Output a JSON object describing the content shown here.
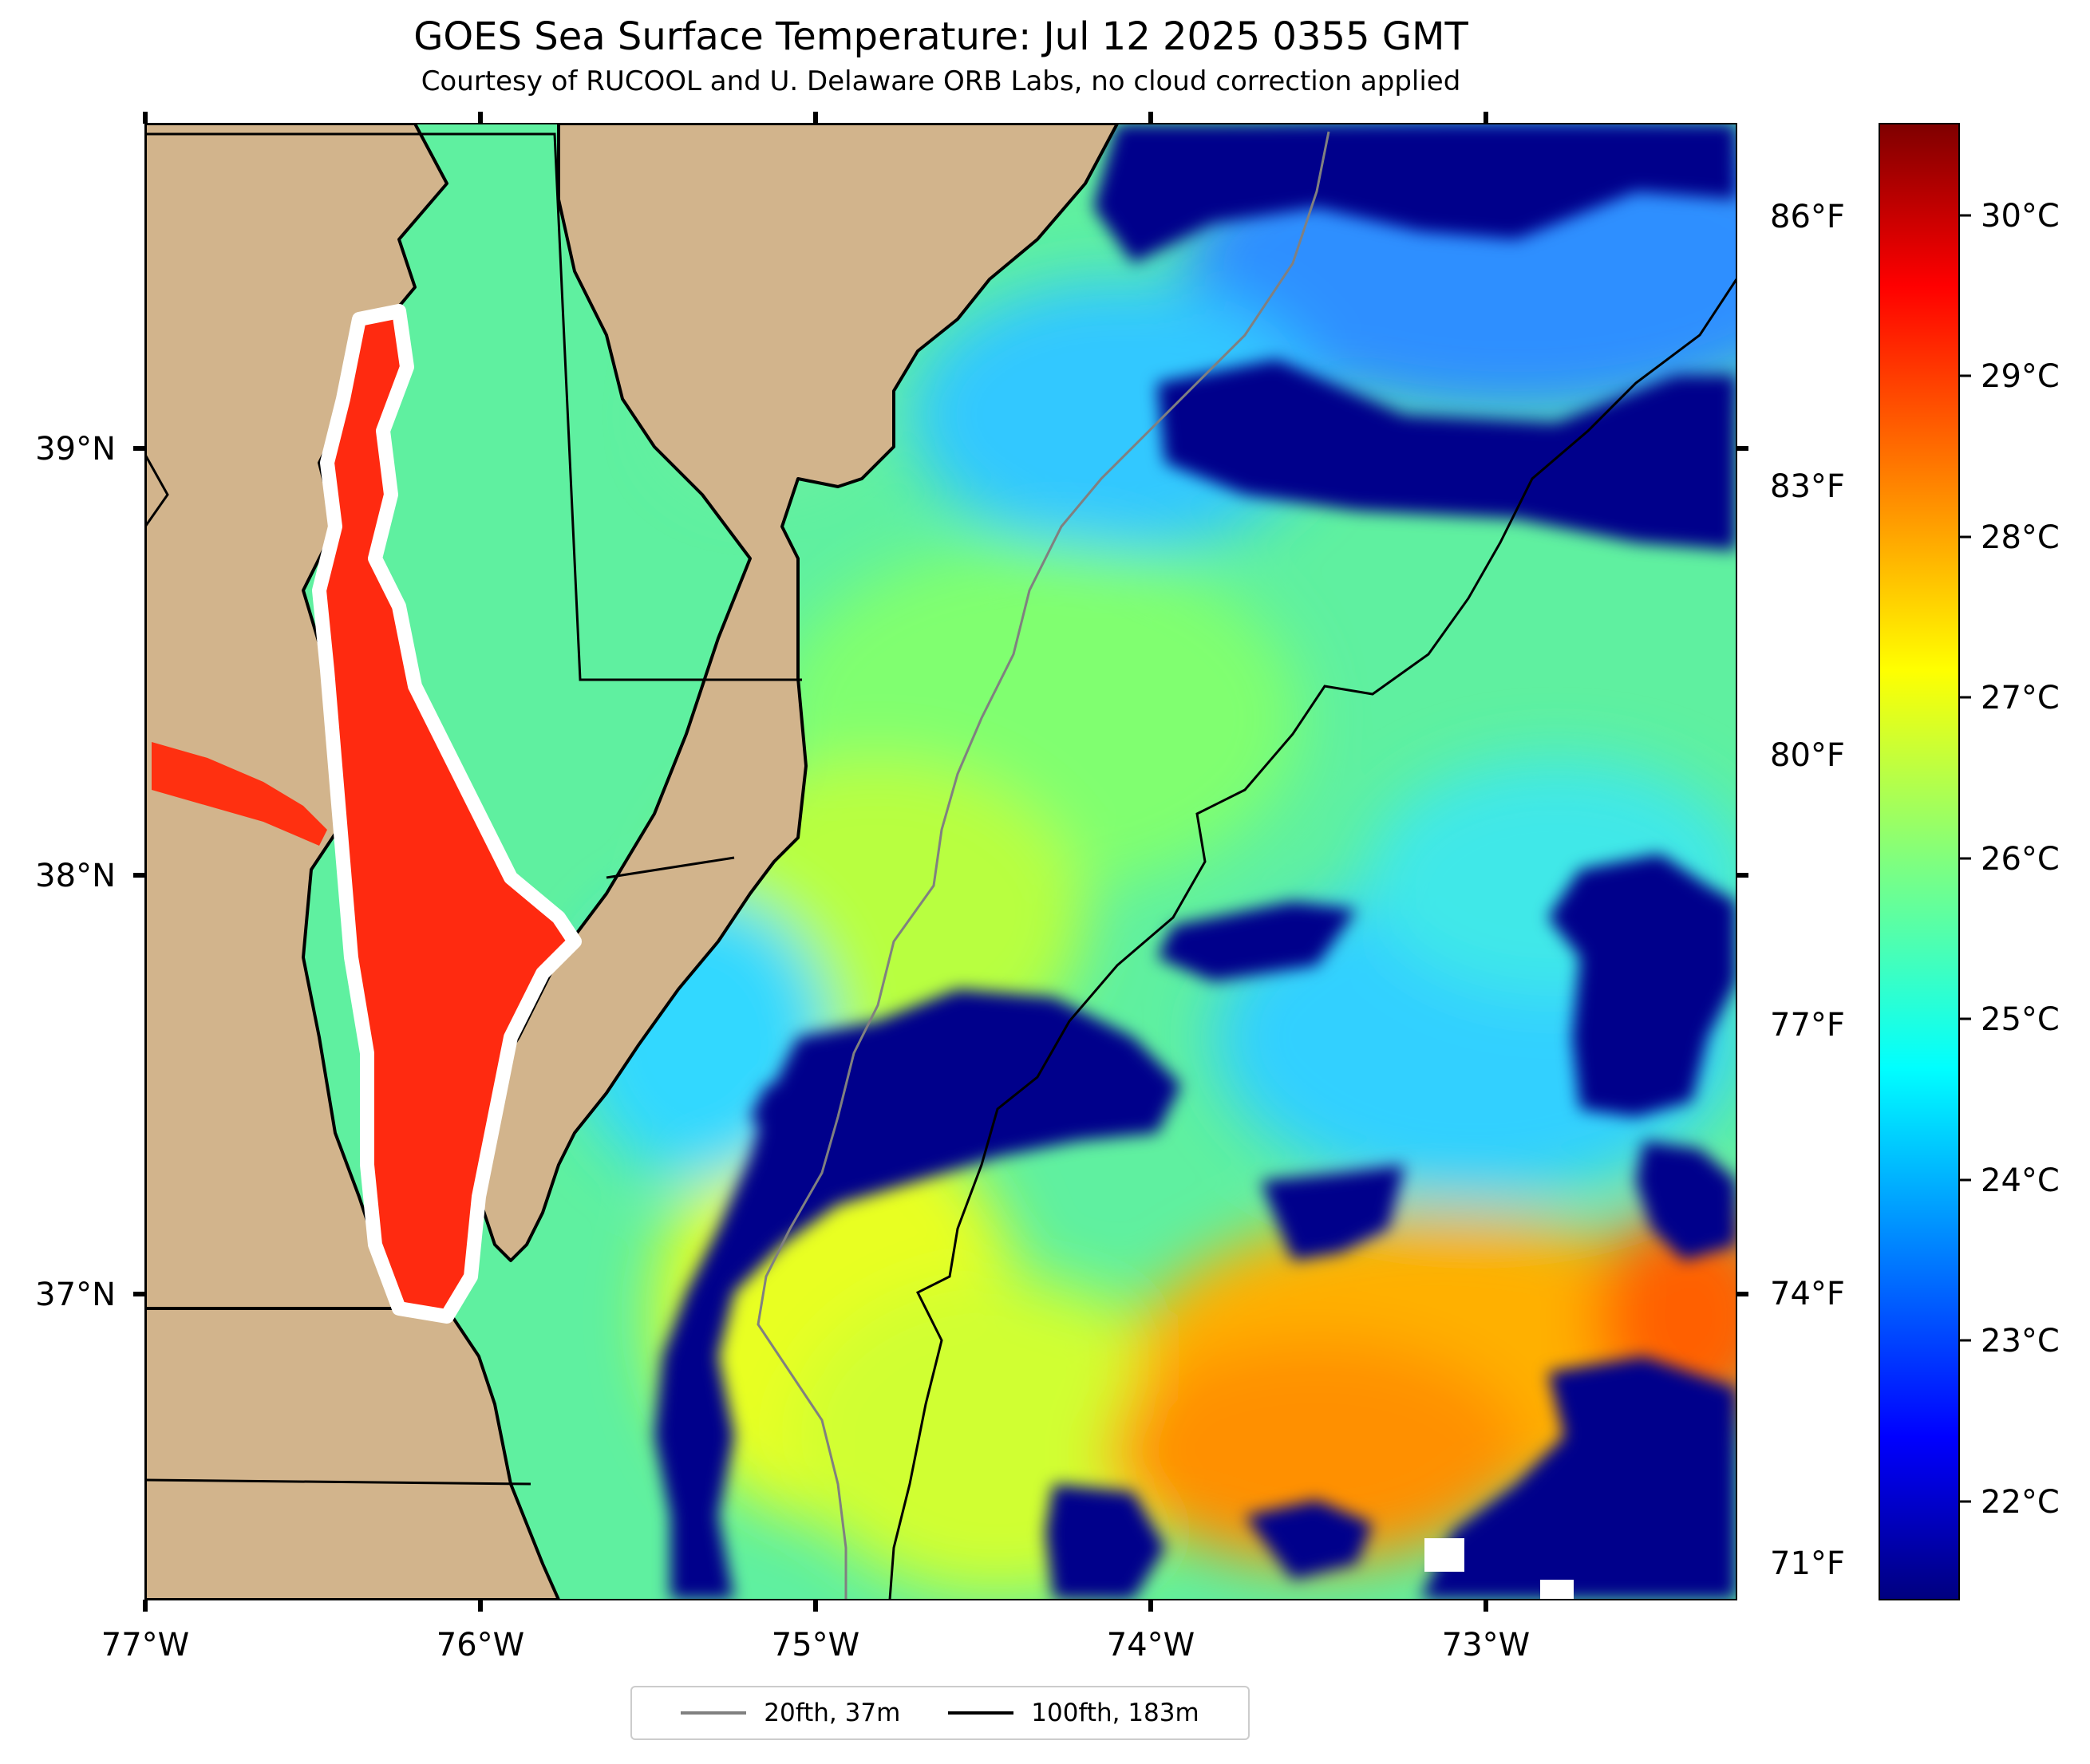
{
  "title": "GOES Sea Surface Temperature: Jul 12 2025 0355 GMT",
  "subtitle": "Courtesy of RUCOOL and U. Delaware ORB Labs, no cloud correction applied",
  "map": {
    "lon_ticks": [
      "77°W",
      "76°W",
      "75°W",
      "74°W",
      "73°W"
    ],
    "lat_ticks": [
      "39°N",
      "38°N",
      "37°N"
    ],
    "lon_range": [
      -77.0,
      -72.25
    ],
    "lat_range": [
      36.3,
      39.75
    ],
    "land_color": "#d2b48c",
    "cloud_color": "#00008b"
  },
  "fahrenheit_ticks": [
    "86°F",
    "83°F",
    "80°F",
    "77°F",
    "74°F",
    "71°F"
  ],
  "colorbar": {
    "ticks": [
      "30°C",
      "29°C",
      "28°C",
      "27°C",
      "26°C",
      "25°C",
      "24°C",
      "23°C",
      "22°C"
    ],
    "range_c": [
      21.5,
      30.5
    ],
    "colormap": "jet"
  },
  "legend": [
    {
      "label": "20fth, 37m",
      "color": "#808080"
    },
    {
      "label": "100fth, 183m",
      "color": "#000000"
    }
  ]
}
